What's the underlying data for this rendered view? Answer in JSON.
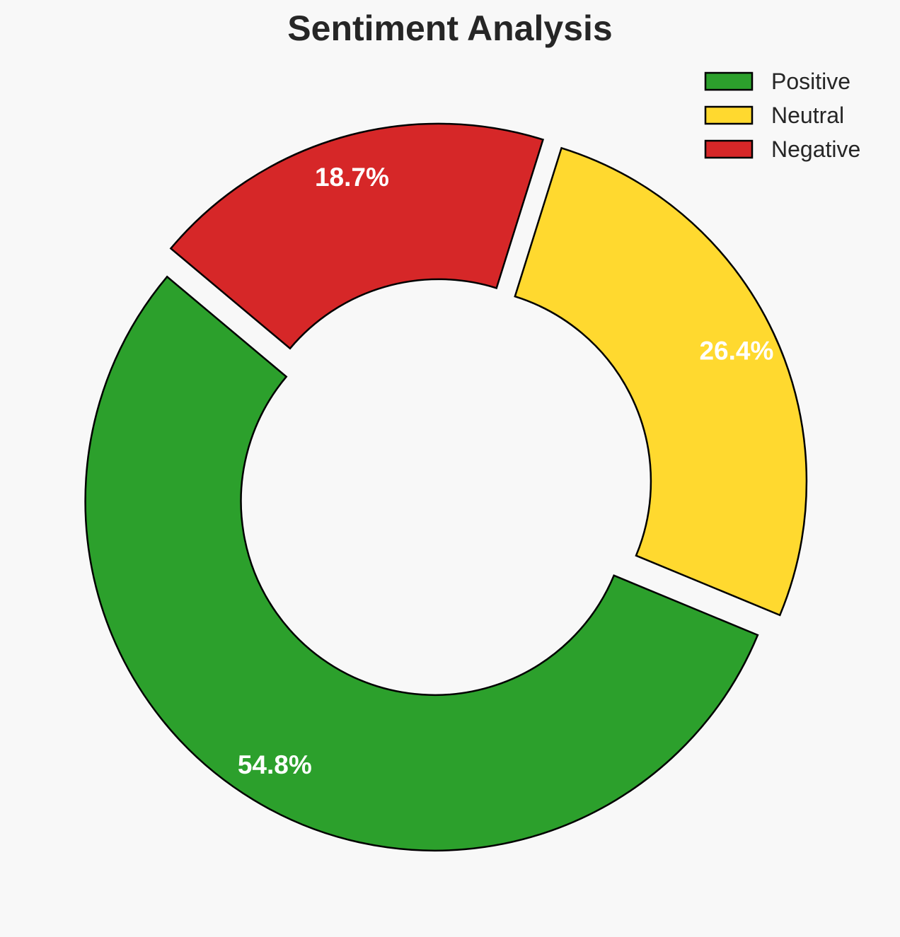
{
  "chart_data": {
    "type": "pie",
    "style": "donut",
    "title": "Sentiment Analysis",
    "categories": [
      "Positive",
      "Neutral",
      "Negative"
    ],
    "values": [
      54.8,
      26.4,
      18.7
    ],
    "value_labels": [
      "54.8%",
      "26.4%",
      "18.7%"
    ],
    "colors": [
      "#2ca02c",
      "#ffd92f",
      "#d62728"
    ],
    "edge_color": "#000000",
    "label_color": "#ffffff",
    "legend": {
      "placement": "top-right",
      "entries": [
        "Positive",
        "Neutral",
        "Negative"
      ]
    }
  }
}
